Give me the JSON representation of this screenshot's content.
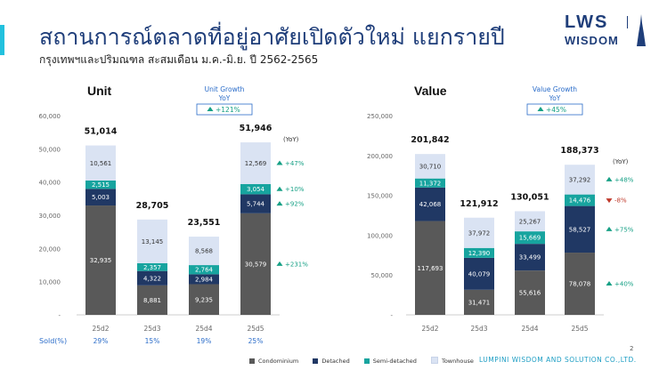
{
  "header": {
    "title": "สถานการณ์ตลาดที่อยู่อาศัยเปิดตัวใหม่ แยกรายปี",
    "subtitle": "กรุงเทพฯและปริมณฑล สะสมเดือน ม.ค.-มิ.ย. ปี 2562-2565"
  },
  "logo": {
    "top": "LWS",
    "bottom": "WISDOM"
  },
  "colors": {
    "condominium": "#595959",
    "detached": "#203864",
    "semi_detached": "#17a49f",
    "townhouse": "#dae3f3",
    "up": "#16a085",
    "down": "#c0392b",
    "title": "#1f3e7a"
  },
  "chart_data": [
    {
      "type": "bar",
      "stacked": true,
      "title": "Unit",
      "categories": [
        "25d2",
        "25d3",
        "25d4",
        "25d5"
      ],
      "ylim": [
        0,
        60000
      ],
      "yticks": [
        "-",
        "10,000",
        "20,000",
        "30,000",
        "40,000",
        "50,000",
        "60,000"
      ],
      "series": [
        {
          "name": "Condominium",
          "values": [
            32935,
            8881,
            9235,
            30579
          ]
        },
        {
          "name": "Detached",
          "values": [
            5003,
            4322,
            2984,
            5744
          ]
        },
        {
          "name": "Semi-detached",
          "values": [
            2515,
            2357,
            2764,
            3054
          ]
        },
        {
          "name": "Townhouse",
          "values": [
            10561,
            13145,
            8568,
            12569
          ]
        }
      ],
      "totals": [
        "51,014",
        "28,705",
        "23,551",
        "51,946"
      ],
      "labels": [
        [
          "32,935",
          "8,881",
          "9,235",
          "30,579"
        ],
        [
          "5,003",
          "4,322",
          "2,984",
          "5,744"
        ],
        [
          "2,515",
          "2,357",
          "2,764",
          "3,054"
        ],
        [
          "10,561",
          "13,145",
          "8,568",
          "12,569"
        ]
      ],
      "growth_box": {
        "title": "Unit Growth",
        "subtitle": "YoY",
        "value": "+121%",
        "direction": "up"
      },
      "yoy_header": "(YoY)",
      "yoy": [
        {
          "value": "+231%",
          "direction": "up"
        },
        {
          "value": "+92%",
          "direction": "up"
        },
        {
          "value": "+10%",
          "direction": "up"
        },
        {
          "value": "+47%",
          "direction": "up"
        }
      ],
      "sold": {
        "label": "Sold(%)",
        "values": [
          "29%",
          "15%",
          "19%",
          "25%"
        ]
      }
    },
    {
      "type": "bar",
      "stacked": true,
      "title": "Value",
      "categories": [
        "25d2",
        "25d3",
        "25d4",
        "25d5"
      ],
      "ylim": [
        0,
        250000
      ],
      "yticks": [
        "-",
        "50,000",
        "100,000",
        "150,000",
        "200,000",
        "250,000"
      ],
      "series": [
        {
          "name": "Condominium",
          "values": [
            117693,
            31471,
            55616,
            78078
          ]
        },
        {
          "name": "Detached",
          "values": [
            42068,
            40079,
            33499,
            58527
          ]
        },
        {
          "name": "Semi-detached",
          "values": [
            11372,
            12390,
            15669,
            14476
          ]
        },
        {
          "name": "Townhouse",
          "values": [
            30710,
            37972,
            25267,
            37292
          ]
        }
      ],
      "totals": [
        "201,842",
        "121,912",
        "130,051",
        "188,373"
      ],
      "labels": [
        [
          "117,693",
          "31,471",
          "55,616",
          "78,078"
        ],
        [
          "42,068",
          "40,079",
          "33,499",
          "58,527"
        ],
        [
          "11,372",
          "12,390",
          "15,669",
          "14,476"
        ],
        [
          "30,710",
          "37,972",
          "25,267",
          "37,292"
        ]
      ],
      "growth_box": {
        "title": "Value Growth",
        "subtitle": "YoY",
        "value": "+45%",
        "direction": "up"
      },
      "yoy_header": "(YoY)",
      "yoy": [
        {
          "value": "+40%",
          "direction": "up"
        },
        {
          "value": "+75%",
          "direction": "up"
        },
        {
          "value": "-8%",
          "direction": "down"
        },
        {
          "value": "+48%",
          "direction": "up"
        }
      ]
    }
  ],
  "legend": [
    "Condominium",
    "Detached",
    "Semi-detached",
    "Townhouse"
  ],
  "footer": {
    "company": "LUMPINI WISDOM AND SOLUTION CO.,LTD.",
    "page": "2"
  }
}
